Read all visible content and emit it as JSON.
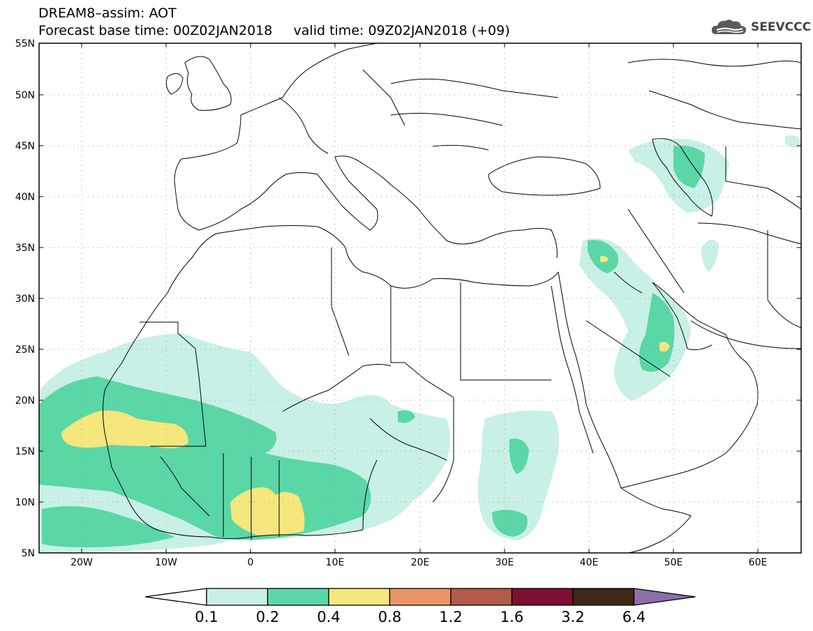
{
  "title": {
    "line1": "DREAM8–assim: AOT",
    "line2": "Forecast base time: 00Z02JAN2018     valid time: 09Z02JAN2018 (+09)"
  },
  "logo": {
    "text": "SEEVCCC",
    "icon": "cloud-icon"
  },
  "map": {
    "lat_labels": [
      "55N",
      "50N",
      "45N",
      "40N",
      "35N",
      "30N",
      "25N",
      "20N",
      "15N",
      "10N",
      "5N"
    ],
    "lon_labels": [
      "20W",
      "10W",
      "0",
      "10E",
      "20E",
      "30E",
      "40E",
      "50E",
      "60E"
    ],
    "lat_range": [
      5,
      55
    ],
    "lon_range": [
      -25,
      65
    ],
    "grid": "dotted"
  },
  "colorbar": {
    "labels": [
      "0.1",
      "0.2",
      "0.4",
      "0.8",
      "1.2",
      "1.6",
      "3.2",
      "6.4"
    ],
    "colors": [
      "#ffffff",
      "#c8f0e6",
      "#5ad7a5",
      "#f5e67d",
      "#e89668",
      "#b45a4b",
      "#7d0f32",
      "#3c2819",
      "#8c6eaa"
    ]
  }
}
